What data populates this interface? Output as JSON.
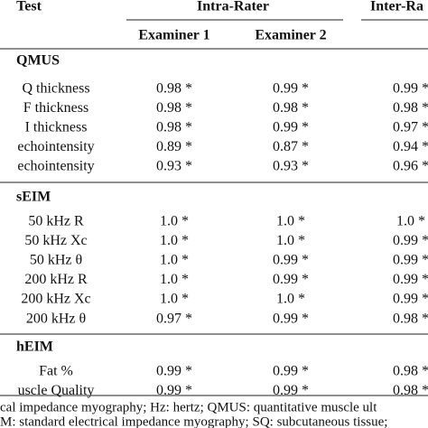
{
  "header": {
    "test": "Test",
    "intra": "Intra-Rater",
    "inter": "Inter-Ra"
  },
  "subheader": [
    "Examiner 1",
    "Examiner 2"
  ],
  "sections": [
    {
      "title": "QMUS",
      "rows": [
        [
          "Q thickness",
          "0.98 *",
          "0.99 *",
          "0.99 *"
        ],
        [
          "F thickness",
          "0.98 *",
          "0.98 *",
          "0.98 *"
        ],
        [
          "I thickness",
          "0.98 *",
          "0.99 *",
          "0.97 *"
        ],
        [
          "echointensity",
          "0.89 *",
          "0.87 *",
          "0.94 *"
        ],
        [
          "echointensity",
          "0.93 *",
          "0.93 *",
          "0.96 *"
        ]
      ]
    },
    {
      "title": "sEIM",
      "rows": [
        [
          "50 kHz R",
          "1.0 *",
          "1.0 *",
          "1.0 *"
        ],
        [
          "50 kHz Xc",
          "1.0 *",
          "1.0 *",
          "0.99 *"
        ],
        [
          "50 kHz θ",
          "1.0 *",
          "0.99 *",
          "0.99 *"
        ],
        [
          "200 kHz R",
          "1.0 *",
          "0.99 *",
          "0.99 *"
        ],
        [
          "200 kHz Xc",
          "1.0 *",
          "1.0 *",
          "0.99 *"
        ],
        [
          "200 kHz θ",
          "0.97 *",
          "0.99 *",
          "0.98 *"
        ]
      ]
    },
    {
      "title": "hEIM",
      "rows": [
        [
          "Fat %",
          "0.99 *",
          "0.99 *",
          "0.98 *"
        ],
        [
          "uscle Quality",
          "0.99 *",
          "0.99 *",
          "0.98 *"
        ]
      ]
    }
  ],
  "footnotes": [
    "cal impedance myography; Hz: hertz; QMUS: quantitative muscle ult",
    "M: standard electrical impedance myography; SQ: subcutaneous tissue;"
  ]
}
